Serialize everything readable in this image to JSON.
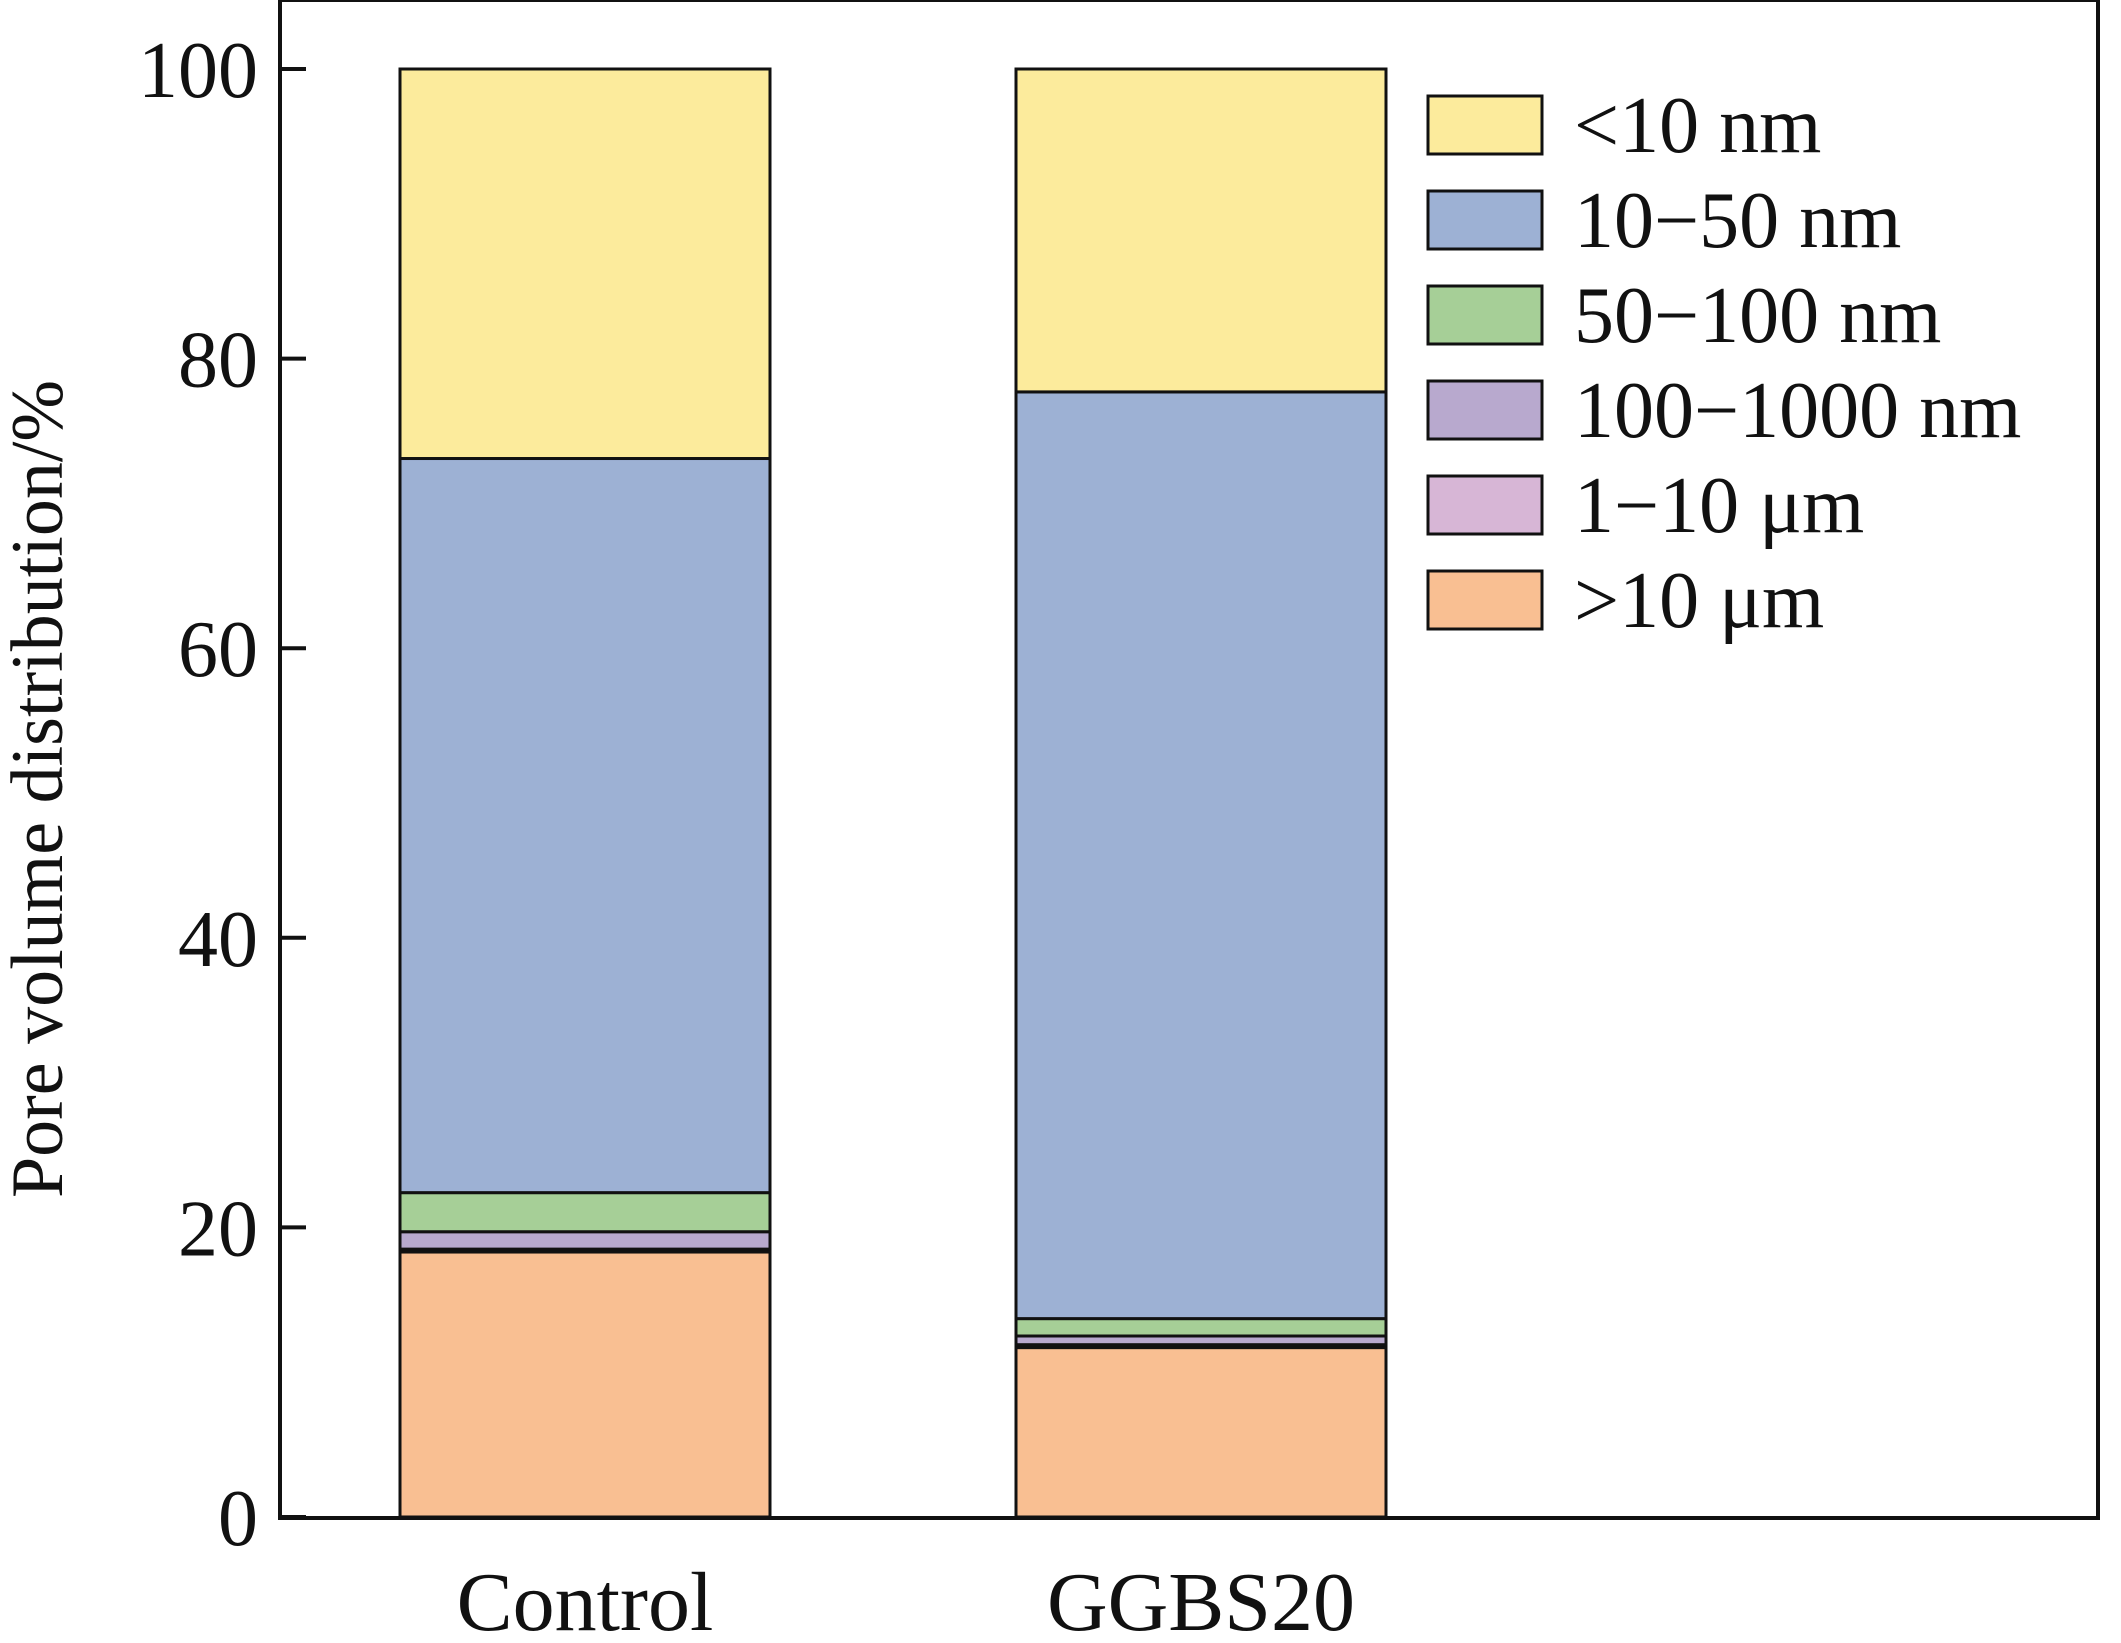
{
  "chart_data": {
    "type": "bar",
    "stacked": true,
    "title": "",
    "xlabel": "",
    "ylabel": "Pore volume distribution/%",
    "ylim": [
      0,
      100
    ],
    "yticks": [
      0,
      20,
      40,
      60,
      80,
      100
    ],
    "categories": [
      "Control",
      "GGBS20"
    ],
    "series": [
      {
        "name": ">10 μm",
        "color": "#F9BF92",
        "values": [
          18.3,
          11.7
        ]
      },
      {
        "name": "1−10 μm",
        "color": "#D7B6D6",
        "values": [
          0.2,
          0.2
        ]
      },
      {
        "name": "100−1000 nm",
        "color": "#B8A9CE",
        "values": [
          1.2,
          0.6
        ]
      },
      {
        "name": "50−100 nm",
        "color": "#A6CF97",
        "values": [
          2.7,
          1.2
        ]
      },
      {
        "name": "10−50 nm",
        "color": "#9DB1D4",
        "values": [
          50.7,
          64.0
        ]
      },
      {
        "name": "<10 nm",
        "color": "#FCEB9C",
        "values": [
          26.9,
          22.3
        ]
      }
    ],
    "legend_order": [
      "<10 nm",
      "10−50 nm",
      "50−100 nm",
      "100−1000 nm",
      "1−10 μm",
      ">10 μm"
    ],
    "legend_position": "top-right",
    "grid": false
  }
}
